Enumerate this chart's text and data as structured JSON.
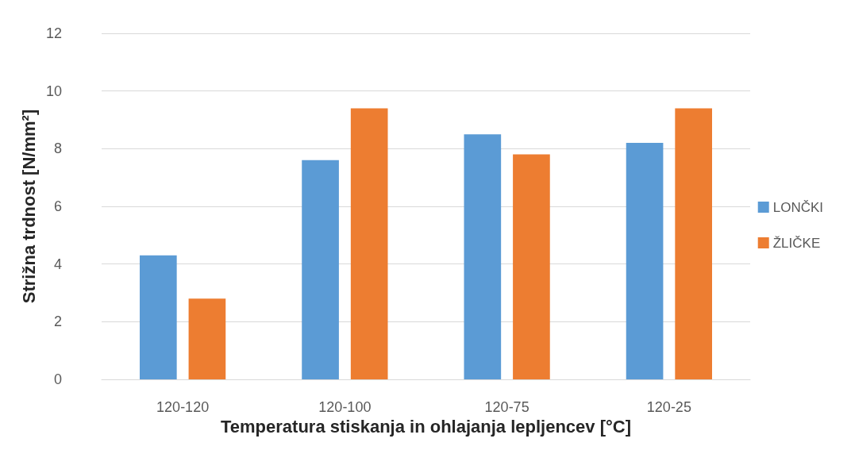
{
  "chart_data": {
    "type": "bar",
    "xlabel": "Temperatura stiskanja in ohlajanja lepljencev [°C]",
    "ylabel": "Strižna trdnost [N/mm²]",
    "categories": [
      "120-120",
      "120-100",
      "120-75",
      "120-25"
    ],
    "series": [
      {
        "name": "LONČKI",
        "color": "#5b9bd5",
        "values": [
          4.3,
          7.6,
          8.5,
          8.2
        ]
      },
      {
        "name": "ŽLIČKE",
        "color": "#ed7d31",
        "values": [
          2.8,
          9.4,
          7.8,
          9.4
        ]
      }
    ],
    "ylim": [
      0,
      12
    ],
    "yticks": [
      0,
      2,
      4,
      6,
      8,
      10,
      12
    ],
    "grid": "y",
    "legend": "right"
  }
}
